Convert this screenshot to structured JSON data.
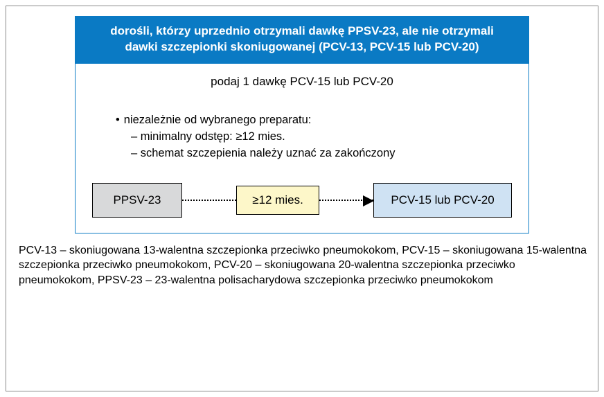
{
  "colors": {
    "header_bg": "#0a7ac4",
    "header_text": "#ffffff",
    "card_border": "#0a7ac4",
    "box_gray_bg": "#d8d9da",
    "box_yellow_bg": "#fdf7c9",
    "box_blue_bg": "#cfe2f3",
    "box_border": "#000000",
    "connector": "#000000",
    "text": "#000000",
    "background": "#ffffff"
  },
  "header": {
    "line1": "dorośli, którzy uprzednio otrzymali dawkę PPSV-23, ale nie otrzymali",
    "line2": "dawki szczepionki skoniugowanej (PCV-13, PCV-15 lub PCV-20)"
  },
  "instruction": "podaj 1 dawkę PCV-15 lub PCV-20",
  "bullet": {
    "lead": "niezależnie od wybranego preparatu:",
    "sub1": "– minimalny odstęp: ≥12 mies.",
    "sub2": "– schemat szczepienia należy uznać za zakończony"
  },
  "flow": {
    "left": "PPSV-23",
    "mid": "≥12 mies.",
    "right": "PCV-15 lub PCV-20"
  },
  "legend": "PCV-13 – skoniugowana 13-walentna szczepionka przeciwko pneumokokom, PCV-15 – skoniugowana 15-walentna szczepionka przeciwko pneumokokom, PCV-20 – skoniugowana 20-walentna szczepionka przeciwko pneumokokom, PPSV-23 – 23-walentna polisacharydowa szczepionka przeciwko pneumokokom"
}
